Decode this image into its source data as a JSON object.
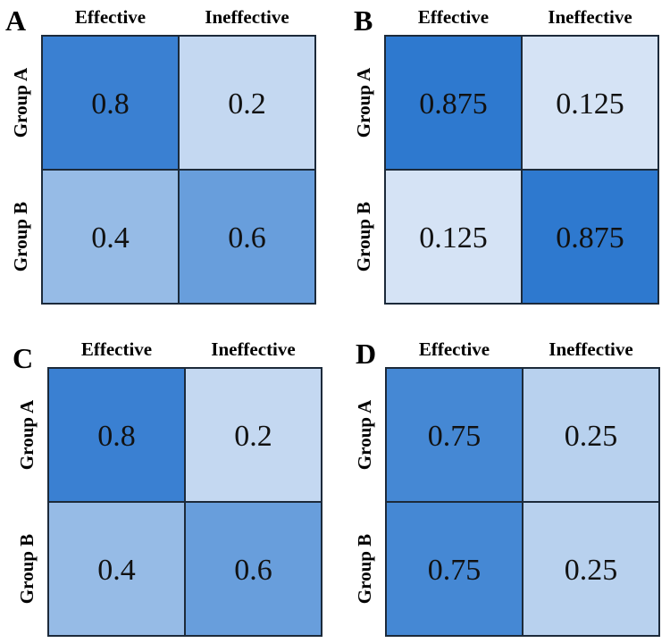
{
  "chart_data": [
    {
      "type": "heatmap",
      "panel": "A",
      "columns": [
        "Effective",
        "Ineffective"
      ],
      "rows": [
        "Group A",
        "Group B"
      ],
      "values": [
        [
          0.8,
          0.2
        ],
        [
          0.4,
          0.6
        ]
      ],
      "value_labels": [
        [
          "0.8",
          "0.2"
        ],
        [
          "0.4",
          "0.6"
        ]
      ]
    },
    {
      "type": "heatmap",
      "panel": "B",
      "columns": [
        "Effective",
        "Ineffective"
      ],
      "rows": [
        "Group A",
        "Group B"
      ],
      "values": [
        [
          0.875,
          0.125
        ],
        [
          0.125,
          0.875
        ]
      ],
      "value_labels": [
        [
          "0.875",
          "0.125"
        ],
        [
          "0.125",
          "0.875"
        ]
      ]
    },
    {
      "type": "heatmap",
      "panel": "C",
      "columns": [
        "Effective",
        "Ineffective"
      ],
      "rows": [
        "Group A",
        "Group B"
      ],
      "values": [
        [
          0.8,
          0.2
        ],
        [
          0.4,
          0.6
        ]
      ],
      "value_labels": [
        [
          "0.8",
          "0.2"
        ],
        [
          "0.4",
          "0.6"
        ]
      ]
    },
    {
      "type": "heatmap",
      "panel": "D",
      "columns": [
        "Effective",
        "Ineffective"
      ],
      "rows": [
        "Group A",
        "Group B"
      ],
      "values": [
        [
          0.75,
          0.25
        ],
        [
          0.75,
          0.25
        ]
      ],
      "value_labels": [
        [
          "0.75",
          "0.25"
        ],
        [
          "0.75",
          "0.25"
        ]
      ]
    }
  ],
  "colors": {
    "low": "#dbe7f6",
    "high": "#2e79cf",
    "border": "#1c2a3a"
  }
}
